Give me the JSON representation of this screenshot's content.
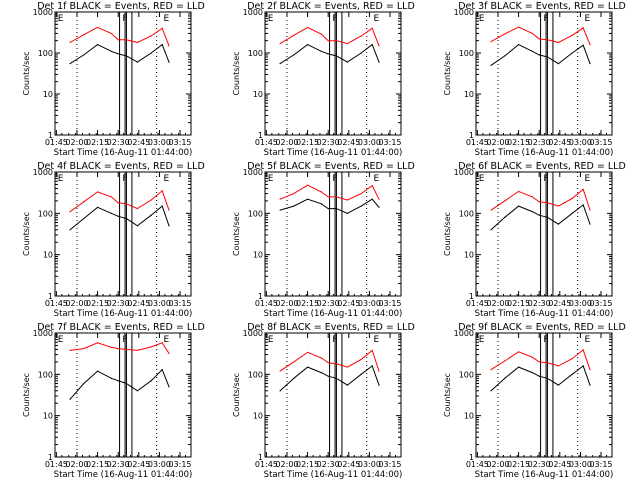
{
  "common": {
    "xlabel": "Start Time (16-Aug-11 01:44:00)",
    "ylabel": "Counts/sec",
    "x_tick_labels": [
      "01:45",
      "02:00",
      "02:15",
      "02:30",
      "02:45",
      "03:00",
      "03:15"
    ],
    "y_tick_labels": [
      "1",
      "10",
      "100",
      "1000"
    ],
    "y_scale": "log",
    "ylim": [
      1,
      1000
    ],
    "xlim": [
      "01:44",
      "03:23"
    ],
    "marker_labels": [
      "E",
      "F",
      "E"
    ],
    "colors": {
      "events": "#000000",
      "lld": "#ff0000"
    }
  },
  "chart_data": [
    {
      "type": "line",
      "title": "Det 1f BLACK = Events, RED = LLD",
      "x": [
        "01:55",
        "02:05",
        "02:15",
        "02:25",
        "02:30",
        "02:36",
        "02:44",
        "02:54",
        "03:02",
        "03:07"
      ],
      "series": [
        {
          "values": [
            55,
            90,
            160,
            110,
            95,
            85,
            60,
            100,
            160,
            60
          ]
        },
        {
          "values": [
            180,
            280,
            420,
            300,
            210,
            210,
            180,
            260,
            400,
            150
          ]
        }
      ]
    },
    {
      "type": "line",
      "title": "Det 2f BLACK = Events, RED = LLD",
      "x": [
        "01:55",
        "02:05",
        "02:15",
        "02:25",
        "02:30",
        "02:36",
        "02:44",
        "02:54",
        "03:02",
        "03:07"
      ],
      "series": [
        {
          "values": [
            55,
            90,
            160,
            110,
            95,
            85,
            60,
            100,
            160,
            60
          ]
        },
        {
          "values": [
            170,
            270,
            420,
            290,
            200,
            200,
            170,
            260,
            400,
            150
          ]
        }
      ]
    },
    {
      "type": "line",
      "title": "Det 3f BLACK = Events, RED = LLD",
      "x": [
        "01:55",
        "02:05",
        "02:15",
        "02:25",
        "02:30",
        "02:36",
        "02:44",
        "02:54",
        "03:02",
        "03:07"
      ],
      "series": [
        {
          "values": [
            50,
            85,
            160,
            110,
            90,
            80,
            55,
            100,
            155,
            55
          ]
        },
        {
          "values": [
            190,
            290,
            430,
            300,
            220,
            210,
            180,
            270,
            410,
            160
          ]
        }
      ]
    },
    {
      "type": "line",
      "title": "Det 4f BLACK = Events, RED = LLD",
      "x": [
        "01:55",
        "02:05",
        "02:15",
        "02:25",
        "02:30",
        "02:36",
        "02:44",
        "02:54",
        "03:02",
        "03:07"
      ],
      "series": [
        {
          "values": [
            40,
            75,
            140,
            100,
            85,
            75,
            50,
            90,
            150,
            50
          ]
        },
        {
          "values": [
            110,
            190,
            330,
            250,
            180,
            170,
            130,
            210,
            350,
            120
          ]
        }
      ]
    },
    {
      "type": "line",
      "title": "Det 5f BLACK = Events, RED = LLD",
      "x": [
        "01:55",
        "02:05",
        "02:15",
        "02:25",
        "02:30",
        "02:36",
        "02:44",
        "02:54",
        "03:02",
        "03:07"
      ],
      "series": [
        {
          "values": [
            120,
            150,
            220,
            170,
            130,
            130,
            100,
            150,
            220,
            140
          ]
        },
        {
          "values": [
            220,
            300,
            480,
            330,
            250,
            250,
            210,
            300,
            470,
            220
          ]
        }
      ]
    },
    {
      "type": "line",
      "title": "Det 6f BLACK = Events, RED = LLD",
      "x": [
        "01:55",
        "02:05",
        "02:15",
        "02:25",
        "02:30",
        "02:36",
        "02:44",
        "02:54",
        "03:02",
        "03:07"
      ],
      "series": [
        {
          "values": [
            40,
            80,
            150,
            110,
            90,
            80,
            55,
            100,
            160,
            55
          ]
        },
        {
          "values": [
            120,
            200,
            340,
            250,
            190,
            180,
            150,
            230,
            380,
            120
          ]
        }
      ]
    },
    {
      "type": "line",
      "title": "Det 7f BLACK = Events, RED = LLD",
      "x": [
        "01:55",
        "02:05",
        "02:15",
        "02:25",
        "02:30",
        "02:36",
        "02:44",
        "02:54",
        "03:02",
        "03:07"
      ],
      "series": [
        {
          "values": [
            25,
            60,
            120,
            80,
            70,
            60,
            40,
            70,
            130,
            50
          ]
        },
        {
          "values": [
            380,
            420,
            580,
            450,
            420,
            400,
            380,
            460,
            580,
            320
          ]
        }
      ]
    },
    {
      "type": "line",
      "title": "Det 8f BLACK = Events, RED = LLD",
      "x": [
        "01:55",
        "02:05",
        "02:15",
        "02:25",
        "02:30",
        "02:36",
        "02:44",
        "02:54",
        "03:02",
        "03:07"
      ],
      "series": [
        {
          "values": [
            40,
            80,
            150,
            110,
            90,
            80,
            55,
            100,
            160,
            55
          ]
        },
        {
          "values": [
            120,
            200,
            340,
            250,
            190,
            180,
            150,
            230,
            380,
            120
          ]
        }
      ]
    },
    {
      "type": "line",
      "title": "Det 9f BLACK = Events, RED = LLD",
      "x": [
        "01:55",
        "02:05",
        "02:15",
        "02:25",
        "02:30",
        "02:36",
        "02:44",
        "02:54",
        "03:02",
        "03:07"
      ],
      "series": [
        {
          "values": [
            40,
            80,
            150,
            110,
            90,
            80,
            55,
            100,
            160,
            55
          ]
        },
        {
          "values": [
            130,
            210,
            350,
            260,
            200,
            190,
            160,
            240,
            390,
            130
          ]
        }
      ]
    }
  ]
}
